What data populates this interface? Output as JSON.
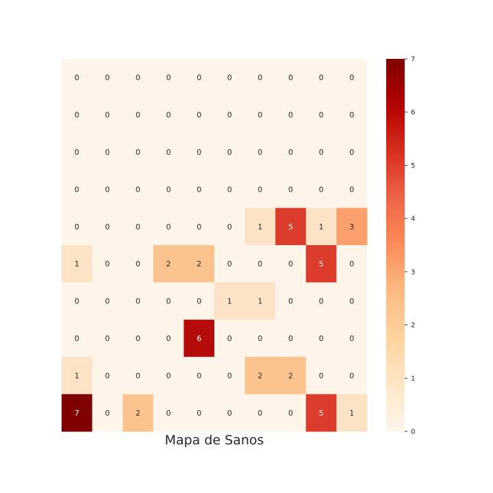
{
  "chart_data": {
    "type": "heatmap",
    "title": "",
    "xlabel": "Mapa de Sanos",
    "ylabel": "",
    "rows": 10,
    "cols": 10,
    "values": [
      [
        0,
        0,
        0,
        0,
        0,
        0,
        0,
        0,
        0,
        0
      ],
      [
        0,
        0,
        0,
        0,
        0,
        0,
        0,
        0,
        0,
        0
      ],
      [
        0,
        0,
        0,
        0,
        0,
        0,
        0,
        0,
        0,
        0
      ],
      [
        0,
        0,
        0,
        0,
        0,
        0,
        0,
        0,
        0,
        0
      ],
      [
        0,
        0,
        0,
        0,
        0,
        0,
        1,
        5,
        1,
        3
      ],
      [
        1,
        0,
        0,
        2,
        2,
        0,
        0,
        0,
        5,
        0
      ],
      [
        0,
        0,
        0,
        0,
        0,
        1,
        1,
        0,
        0,
        0
      ],
      [
        0,
        0,
        0,
        0,
        6,
        0,
        0,
        0,
        0,
        0
      ],
      [
        1,
        0,
        0,
        0,
        0,
        0,
        2,
        2,
        0,
        0
      ],
      [
        7,
        0,
        2,
        0,
        0,
        0,
        0,
        0,
        5,
        1
      ]
    ],
    "annotate": true,
    "colormap": "OrRd",
    "vmin": 0,
    "vmax": 7,
    "colorbar": {
      "ticks": [
        0,
        1,
        2,
        3,
        4,
        5,
        6,
        7
      ],
      "tick_labels": [
        "0",
        "1",
        "2",
        "3",
        "4",
        "5",
        "6",
        "7"
      ]
    },
    "colors": {
      "0": "#fff5eb",
      "1": "#fde3c6",
      "2": "#fbc48f",
      "3": "#f9a06c",
      "5": "#dc3c2b",
      "6": "#b50b0b",
      "7": "#7f0000"
    },
    "grid": false
  }
}
